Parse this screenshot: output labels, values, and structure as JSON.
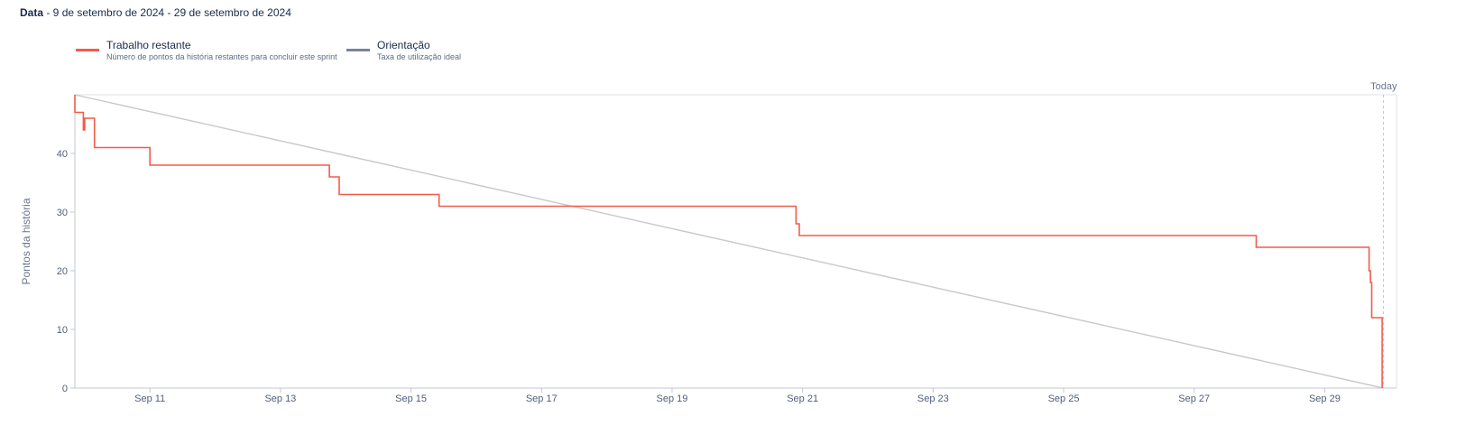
{
  "header": {
    "label": "Data",
    "range": " - 9 de setembro de 2024 - 29 de setembro de 2024"
  },
  "legend": [
    {
      "name": "Trabalho restante",
      "description": "Número de pontos da história restantes para concluir este sprint",
      "color": "#f15c4a"
    },
    {
      "name": "Orientação",
      "description": "Taxa de utilização ideal",
      "color": "#7a8399"
    }
  ],
  "chart_data": {
    "type": "line",
    "title": "",
    "xlabel": "",
    "ylabel": "Pontos da história",
    "today_label": "Today",
    "x_ticks": [
      "Sep 11",
      "Sep 13",
      "Sep 15",
      "Sep 17",
      "Sep 19",
      "Sep 21",
      "Sep 23",
      "Sep 25",
      "Sep 27",
      "Sep 29"
    ],
    "x_tick_days": [
      11,
      13,
      15,
      17,
      19,
      21,
      23,
      25,
      27,
      29
    ],
    "xlim_days": [
      9.85,
      30.1
    ],
    "today_day": 29.9,
    "y_ticks": [
      0,
      10,
      20,
      30,
      40
    ],
    "ylim": [
      0,
      50
    ],
    "grid": false,
    "legend_position": "top-left",
    "series": [
      {
        "name": "Trabalho restante",
        "color": "#f15c4a",
        "step": true,
        "points": [
          [
            9.85,
            50
          ],
          [
            9.85,
            47
          ],
          [
            9.98,
            47
          ],
          [
            9.98,
            44
          ],
          [
            10.0,
            44
          ],
          [
            10.0,
            46
          ],
          [
            10.15,
            46
          ],
          [
            10.15,
            41
          ],
          [
            11.0,
            41
          ],
          [
            11.0,
            38
          ],
          [
            13.75,
            38
          ],
          [
            13.75,
            36
          ],
          [
            13.9,
            36
          ],
          [
            13.9,
            33
          ],
          [
            15.43,
            33
          ],
          [
            15.43,
            31
          ],
          [
            20.9,
            31
          ],
          [
            20.9,
            28
          ],
          [
            20.95,
            28
          ],
          [
            20.95,
            26
          ],
          [
            27.95,
            26
          ],
          [
            27.95,
            24
          ],
          [
            29.68,
            24
          ],
          [
            29.68,
            20
          ],
          [
            29.7,
            20
          ],
          [
            29.7,
            18
          ],
          [
            29.72,
            18
          ],
          [
            29.72,
            12
          ],
          [
            29.88,
            12
          ],
          [
            29.88,
            0
          ]
        ]
      },
      {
        "name": "Orientação",
        "color": "#c8c8c8",
        "step": false,
        "points": [
          [
            9.85,
            50
          ],
          [
            29.9,
            0
          ]
        ]
      }
    ]
  }
}
